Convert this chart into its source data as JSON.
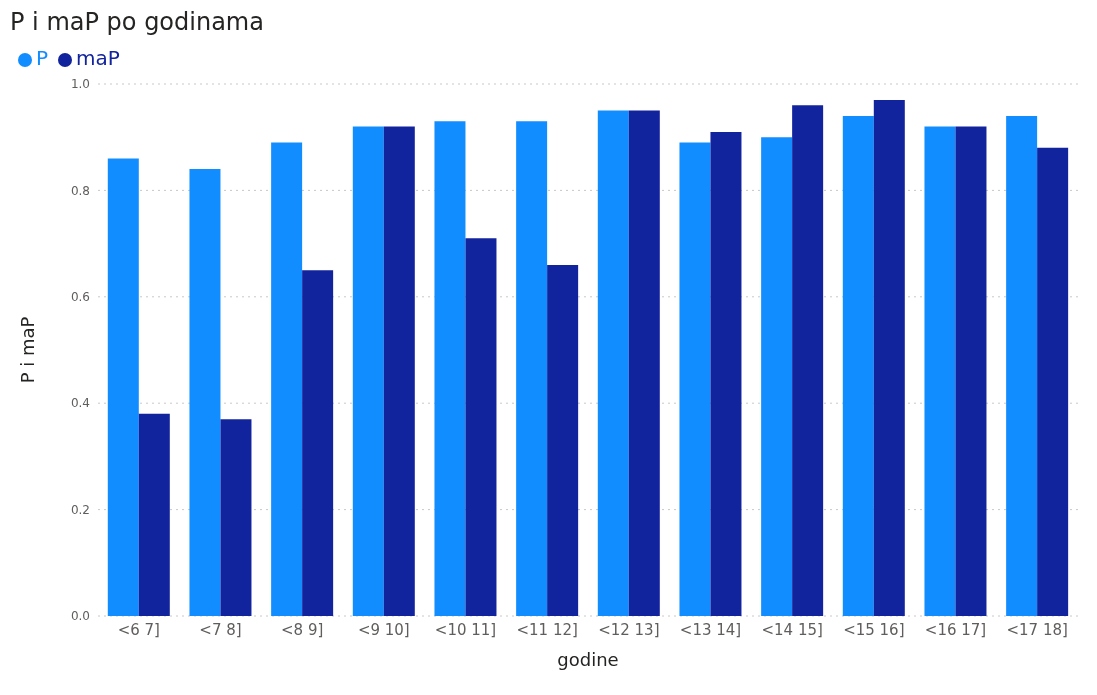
{
  "chart_data": {
    "type": "bar",
    "title": "P i maP po godinama",
    "xlabel": "godine",
    "ylabel": "P i maP",
    "categories": [
      "<6 7]",
      "<7 8]",
      "<8 9]",
      "<9 10]",
      "<10 11]",
      "<11 12]",
      "<12 13]",
      "<13 14]",
      "<14 15]",
      "<15 16]",
      "<16 17]",
      "<17 18]"
    ],
    "series": [
      {
        "name": "P",
        "color": "#118dff",
        "values": [
          0.86,
          0.84,
          0.89,
          0.92,
          0.93,
          0.93,
          0.95,
          0.89,
          0.9,
          0.94,
          0.92,
          0.94
        ]
      },
      {
        "name": "maP",
        "color": "#12239e",
        "values": [
          0.38,
          0.37,
          0.65,
          0.92,
          0.71,
          0.66,
          0.95,
          0.91,
          0.96,
          0.97,
          0.92,
          0.88
        ]
      }
    ],
    "ylim": [
      0,
      1
    ],
    "yticks": [
      {
        "value": 0,
        "label": "0.0"
      },
      {
        "value": 0.2,
        "label": "0.2"
      },
      {
        "value": 0.4,
        "label": "0.4"
      },
      {
        "value": 0.6,
        "label": "0.6"
      },
      {
        "value": 0.8,
        "label": "0.8"
      },
      {
        "value": 1,
        "label": "1.0"
      }
    ],
    "grid": "y",
    "legend": "top left"
  }
}
